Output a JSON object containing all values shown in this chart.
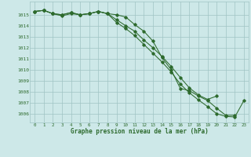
{
  "title": "Graphe pression niveau de la mer (hPa)",
  "xlabel_ticks": [
    0,
    1,
    2,
    3,
    4,
    5,
    6,
    7,
    8,
    9,
    10,
    11,
    12,
    13,
    14,
    15,
    16,
    17,
    18,
    19,
    20,
    21,
    22,
    23
  ],
  "ylim": [
    1005.2,
    1016.2
  ],
  "yticks": [
    1006,
    1007,
    1008,
    1009,
    1010,
    1011,
    1012,
    1013,
    1014,
    1015
  ],
  "bg_color": "#cde8e8",
  "grid_color": "#a0c4c4",
  "line_color": "#2d6a2d",
  "line1_x": [
    0,
    1,
    2,
    3,
    4,
    5,
    6,
    7,
    8,
    9,
    10,
    11,
    12,
    13,
    14,
    15,
    16,
    17,
    18,
    19,
    20,
    21,
    22
  ],
  "line1_y": [
    1015.3,
    1015.4,
    1015.1,
    1015.0,
    1015.2,
    1015.0,
    1015.1,
    1015.3,
    1015.1,
    1015.0,
    1014.8,
    1014.1,
    1013.5,
    1012.6,
    1011.1,
    1010.0,
    1008.3,
    1008.1,
    1007.6,
    1007.2,
    1006.5,
    1005.85,
    1005.85
  ],
  "line2_x": [
    0,
    1,
    2,
    3,
    4,
    5,
    6,
    7,
    8,
    9,
    10,
    11,
    12,
    13,
    14,
    15,
    16,
    17,
    18,
    19,
    20
  ],
  "line2_y": [
    1015.3,
    1015.4,
    1015.1,
    1015.0,
    1015.2,
    1015.0,
    1015.1,
    1015.3,
    1015.1,
    1014.55,
    1014.0,
    1013.5,
    1012.7,
    1012.0,
    1011.2,
    1010.3,
    1009.3,
    1008.35,
    1007.7,
    1007.3,
    1007.6
  ],
  "line3_x": [
    0,
    1,
    2,
    3,
    4,
    5,
    6,
    7,
    8,
    9,
    10,
    11,
    12,
    13,
    14,
    15,
    16,
    17,
    18,
    19,
    20,
    21,
    22,
    23
  ],
  "line3_y": [
    1015.3,
    1015.4,
    1015.1,
    1014.9,
    1015.1,
    1015.0,
    1015.1,
    1015.3,
    1015.1,
    1014.3,
    1013.75,
    1013.1,
    1012.3,
    1011.5,
    1010.7,
    1009.8,
    1008.7,
    1007.9,
    1007.25,
    1006.65,
    1006.0,
    1005.75,
    1005.7,
    1007.2
  ]
}
